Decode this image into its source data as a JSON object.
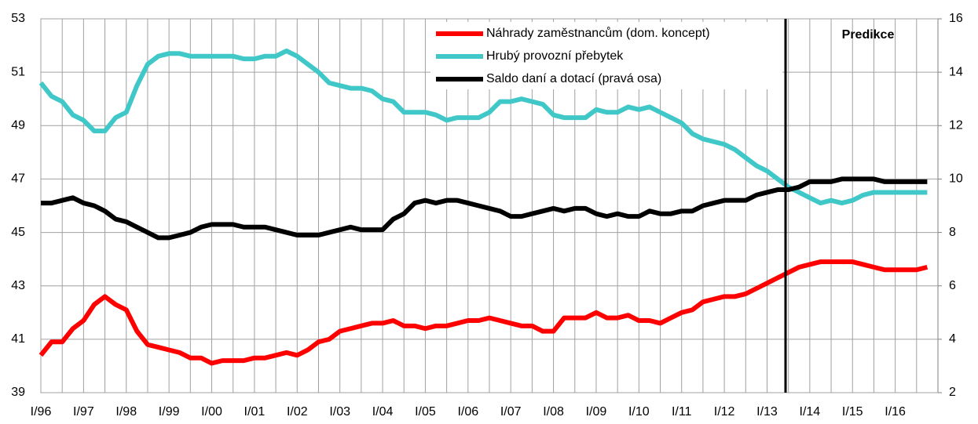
{
  "chart_data": {
    "type": "line",
    "categories": [
      "I/96",
      null,
      null,
      null,
      "I/97",
      null,
      null,
      null,
      "I/98",
      null,
      null,
      null,
      "I/99",
      null,
      null,
      null,
      "I/00",
      null,
      null,
      null,
      "I/01",
      null,
      null,
      null,
      "I/02",
      null,
      null,
      null,
      "I/03",
      null,
      null,
      null,
      "I/04",
      null,
      null,
      null,
      "I/05",
      null,
      null,
      null,
      "I/06",
      null,
      null,
      null,
      "I/07",
      null,
      null,
      null,
      "I/08",
      null,
      null,
      null,
      "I/09",
      null,
      null,
      null,
      "I/10",
      null,
      null,
      null,
      "I/11",
      null,
      null,
      null,
      "I/12",
      null,
      null,
      null,
      "I/13",
      null,
      null,
      null,
      "I/14",
      null,
      null,
      null,
      "I/15",
      null,
      null,
      null,
      "I/16",
      null,
      null,
      null
    ],
    "series": [
      {
        "name": "Náhrady zaměstnancům (dom. koncept)",
        "color": "#ff0000",
        "values": [
          40.4,
          40.9,
          40.9,
          41.4,
          41.7,
          42.3,
          42.6,
          42.3,
          42.1,
          41.3,
          40.8,
          40.7,
          40.6,
          40.5,
          40.3,
          40.3,
          40.1,
          40.2,
          40.2,
          40.2,
          40.3,
          40.3,
          40.4,
          40.5,
          40.4,
          40.6,
          40.9,
          41.0,
          41.3,
          41.4,
          41.5,
          41.6,
          41.6,
          41.7,
          41.5,
          41.5,
          41.4,
          41.5,
          41.5,
          41.6,
          41.7,
          41.7,
          41.8,
          41.7,
          41.6,
          41.5,
          41.5,
          41.3,
          41.3,
          41.8,
          41.8,
          41.8,
          42.0,
          41.8,
          41.8,
          41.9,
          41.7,
          41.7,
          41.6,
          41.8,
          42.0,
          42.1,
          42.4,
          42.5,
          42.6,
          42.6,
          42.7,
          42.9,
          43.1,
          43.3,
          43.5,
          43.7,
          43.8,
          43.9,
          43.9,
          43.9,
          43.9,
          43.8,
          43.7,
          43.6,
          43.6,
          43.6,
          43.6,
          43.7
        ]
      },
      {
        "name": "Hrubý provozní přebytek",
        "color": "#40c8c8",
        "values": [
          50.6,
          50.1,
          49.9,
          49.4,
          49.2,
          48.8,
          48.8,
          49.3,
          49.5,
          50.5,
          51.3,
          51.6,
          51.7,
          51.7,
          51.6,
          51.6,
          51.6,
          51.6,
          51.6,
          51.5,
          51.5,
          51.6,
          51.6,
          51.8,
          51.6,
          51.3,
          51.0,
          50.6,
          50.5,
          50.4,
          50.4,
          50.3,
          50.0,
          49.9,
          49.5,
          49.5,
          49.5,
          49.4,
          49.2,
          49.3,
          49.3,
          49.3,
          49.5,
          49.9,
          49.9,
          50.0,
          49.9,
          49.8,
          49.4,
          49.3,
          49.3,
          49.3,
          49.6,
          49.5,
          49.5,
          49.7,
          49.6,
          49.7,
          49.5,
          49.3,
          49.1,
          48.7,
          48.5,
          48.4,
          48.3,
          48.1,
          47.8,
          47.5,
          47.3,
          47.0,
          46.7,
          46.5,
          46.3,
          46.1,
          46.2,
          46.1,
          46.2,
          46.4,
          46.5,
          46.5,
          46.5,
          46.5,
          46.5,
          46.5
        ]
      },
      {
        "name": "Saldo daní a dotací (pravá osa)",
        "color": "#000000",
        "axis": "y2",
        "values": [
          9.1,
          9.1,
          9.2,
          9.3,
          9.1,
          9.0,
          8.8,
          8.5,
          8.4,
          8.2,
          8.0,
          7.8,
          7.8,
          7.9,
          8.0,
          8.2,
          8.3,
          8.3,
          8.3,
          8.2,
          8.2,
          8.2,
          8.1,
          8.0,
          7.9,
          7.9,
          7.9,
          8.0,
          8.1,
          8.2,
          8.1,
          8.1,
          8.1,
          8.5,
          8.7,
          9.1,
          9.2,
          9.1,
          9.2,
          9.2,
          9.1,
          9.0,
          8.9,
          8.8,
          8.6,
          8.6,
          8.7,
          8.8,
          8.9,
          8.8,
          8.9,
          8.9,
          8.7,
          8.6,
          8.7,
          8.6,
          8.6,
          8.8,
          8.7,
          8.7,
          8.8,
          8.8,
          9.0,
          9.1,
          9.2,
          9.2,
          9.2,
          9.4,
          9.5,
          9.6,
          9.6,
          9.7,
          9.9,
          9.9,
          9.9,
          10.0,
          10.0,
          10.0,
          10.0,
          9.9,
          9.9,
          9.9,
          9.9,
          9.9
        ]
      }
    ],
    "ylim": [
      39,
      53
    ],
    "yticks": [
      39,
      41,
      43,
      45,
      47,
      49,
      51,
      53
    ],
    "y2lim": [
      2,
      16
    ],
    "y2ticks": [
      2,
      4,
      6,
      8,
      10,
      12,
      14,
      16
    ],
    "annotation": "Predikce",
    "grid": true
  }
}
